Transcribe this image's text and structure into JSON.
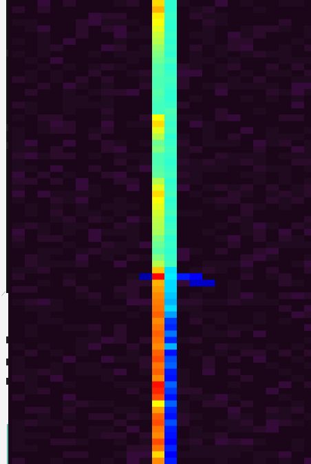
{
  "chart_data": {
    "type": "heatmap",
    "title": "",
    "xlabel": "",
    "ylabel": "",
    "colormap": "jet",
    "grid": false,
    "legend": "none",
    "background_color": "#1a0618",
    "columns": 24,
    "rows": 73,
    "highlight_columns": [
      {
        "column": 11,
        "values": [
          0.66,
          0.7,
          0.64,
          0.62,
          0.6,
          0.57,
          0.55,
          0.52,
          0.5,
          0.48,
          0.46,
          0.46,
          0.45,
          0.45,
          0.46,
          0.45,
          0.44,
          0.44,
          0.62,
          0.66,
          0.6,
          0.55,
          0.48,
          0.5,
          0.45,
          0.45,
          0.46,
          0.47,
          0.55,
          0.6,
          0.66,
          0.62,
          0.6,
          0.58,
          0.56,
          0.55,
          0.54,
          0.5,
          0.48,
          0.46,
          0.5,
          0.55,
          0.68,
          0.87,
          0.7,
          0.72,
          0.74,
          0.75,
          0.76,
          0.78,
          0.74,
          0.76,
          0.78,
          0.76,
          0.74,
          0.78,
          0.8,
          0.76,
          0.78,
          0.74,
          0.86,
          0.84,
          0.8,
          0.62,
          0.72,
          0.78,
          0.8,
          0.76,
          0.74,
          0.8,
          0.76,
          0.66,
          0.74
        ]
      },
      {
        "column": 12,
        "values": [
          0.42,
          0.42,
          0.43,
          0.42,
          0.42,
          0.43,
          0.42,
          0.43,
          0.42,
          0.44,
          0.42,
          0.43,
          0.44,
          0.43,
          0.42,
          0.42,
          0.43,
          0.45,
          0.44,
          0.43,
          0.44,
          0.42,
          0.43,
          0.44,
          0.43,
          0.42,
          0.43,
          0.44,
          0.42,
          0.43,
          0.44,
          0.42,
          0.43,
          0.44,
          0.42,
          0.43,
          0.44,
          0.42,
          0.43,
          0.42,
          0.43,
          0.44,
          0.35,
          0.36,
          0.34,
          0.34,
          0.32,
          0.3,
          0.34,
          0.28,
          0.18,
          0.16,
          0.24,
          0.16,
          0.3,
          0.14,
          0.2,
          0.22,
          0.15,
          0.14,
          0.22,
          0.18,
          0.14,
          0.22,
          0.16,
          0.14,
          0.2,
          0.15,
          0.14,
          0.12,
          0.16,
          0.12,
          0.15
        ]
      }
    ],
    "sparse_cells": [
      {
        "row": 43,
        "column": 10,
        "value": 0.04
      },
      {
        "row": 43,
        "column": 13,
        "value": 0.15
      },
      {
        "row": 43,
        "column": 14,
        "value": 0.12
      },
      {
        "row": 44,
        "column": 14,
        "value": 0.07
      },
      {
        "row": 44,
        "column": 15,
        "value": 0.07
      }
    ],
    "noise": {
      "level_range": [
        0.0,
        0.06
      ],
      "description_colors": [
        "#1a0618",
        "#200a20",
        "#2a0c2a",
        "#340a38"
      ]
    }
  },
  "icons": [
    "resize-grip-icon"
  ]
}
